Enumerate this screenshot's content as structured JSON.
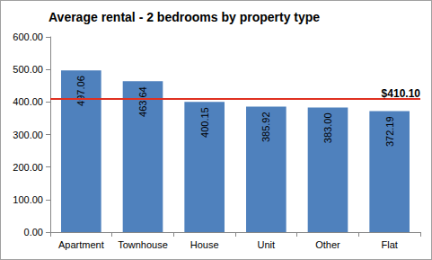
{
  "chart_data": {
    "type": "bar",
    "title": "Average rental - 2 bedrooms by property type",
    "categories": [
      "Apartment",
      "Townhouse",
      "House",
      "Unit",
      "Other",
      "Flat"
    ],
    "values": [
      497.06,
      463.64,
      400.15,
      385.92,
      383.0,
      372.19
    ],
    "value_labels": [
      "497.06",
      "463.64",
      "400.15",
      "385.92",
      "383.00",
      "372.19"
    ],
    "color": "#4f81bd",
    "data_labels": true,
    "grid": false,
    "ylim": [
      0,
      600
    ],
    "yticks": [
      {
        "value": 0,
        "label": "0.00"
      },
      {
        "value": 100,
        "label": "100.00"
      },
      {
        "value": 200,
        "label": "200.00"
      },
      {
        "value": 300,
        "label": "300.00"
      },
      {
        "value": 400,
        "label": "400.00"
      },
      {
        "value": 500,
        "label": "500.00"
      },
      {
        "value": 600,
        "label": "600.00"
      }
    ],
    "annotations": [
      {
        "value": 410.1,
        "label": "$410.10",
        "color": "#e03020"
      }
    ]
  }
}
